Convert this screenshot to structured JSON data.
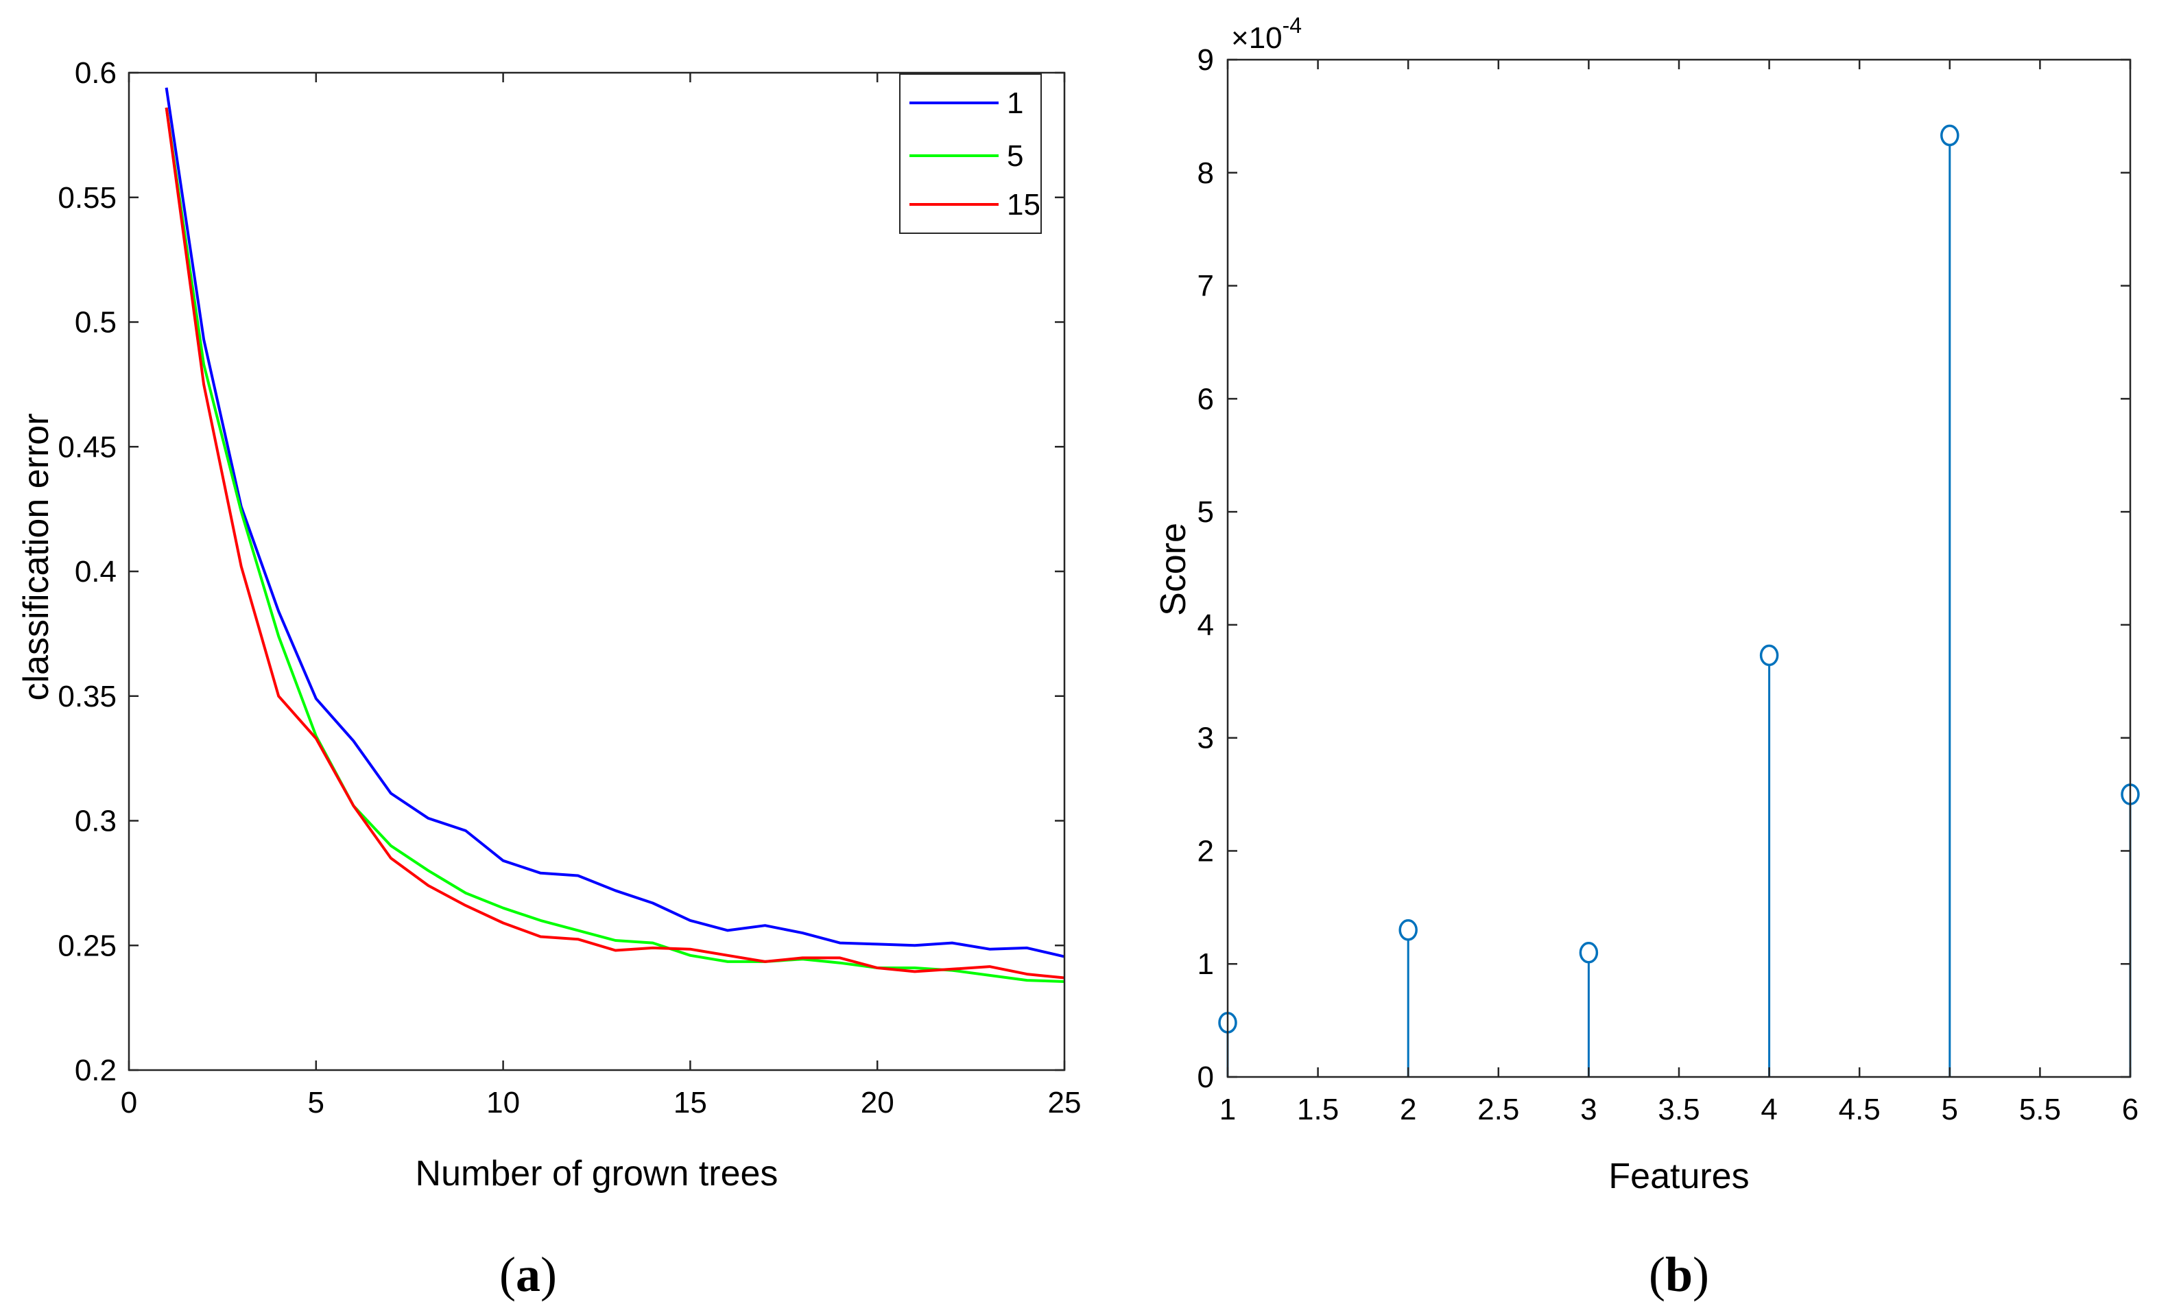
{
  "chart_data": [
    {
      "type": "line",
      "panel_label": "a",
      "caption": {
        "open": "(",
        "letter": "a",
        "close": ")"
      },
      "title": "",
      "xlabel": "Number of grown trees",
      "ylabel": "classification error",
      "xlim": [
        0,
        25
      ],
      "ylim": [
        0.2,
        0.6
      ],
      "xticks": [
        0,
        5,
        10,
        15,
        20,
        25
      ],
      "xtick_labels": [
        "0",
        "5",
        "10",
        "15",
        "20",
        "25"
      ],
      "yticks": [
        0.2,
        0.25,
        0.3,
        0.35,
        0.4,
        0.45,
        0.5,
        0.55,
        0.6
      ],
      "ytick_labels": [
        "0.2",
        "0.25",
        "0.3",
        "0.35",
        "0.4",
        "0.45",
        "0.5",
        "0.55",
        "0.6"
      ],
      "grid": false,
      "legend_position": "top-right",
      "x": [
        1,
        2,
        3,
        4,
        5,
        6,
        7,
        8,
        9,
        10,
        11,
        12,
        13,
        14,
        15,
        16,
        17,
        18,
        19,
        20,
        21,
        22,
        23,
        24,
        25
      ],
      "series": [
        {
          "name": "1",
          "color": "#0000ff",
          "values": [
            0.594,
            0.493,
            0.426,
            0.384,
            0.349,
            0.332,
            0.311,
            0.301,
            0.296,
            0.284,
            0.279,
            0.278,
            0.272,
            0.267,
            0.26,
            0.256,
            0.258,
            0.255,
            0.251,
            0.2505,
            0.25,
            0.251,
            0.2485,
            0.249,
            0.2455
          ]
        },
        {
          "name": "5",
          "color": "#00ff00",
          "values": [
            0.586,
            0.483,
            0.424,
            0.374,
            0.334,
            0.306,
            0.29,
            0.28,
            0.271,
            0.265,
            0.26,
            0.256,
            0.252,
            0.251,
            0.246,
            0.2435,
            0.2435,
            0.2445,
            0.243,
            0.241,
            0.241,
            0.24,
            0.238,
            0.236,
            0.2355
          ]
        },
        {
          "name": "15",
          "color": "#ff0000",
          "values": [
            0.586,
            0.475,
            0.402,
            0.35,
            0.333,
            0.306,
            0.285,
            0.274,
            0.266,
            0.259,
            0.2535,
            0.2525,
            0.248,
            0.249,
            0.2485,
            0.246,
            0.2435,
            0.245,
            0.245,
            0.241,
            0.2395,
            0.2405,
            0.2415,
            0.2385,
            0.237
          ]
        }
      ]
    },
    {
      "type": "stem",
      "panel_label": "b",
      "caption": {
        "open": "(",
        "letter": "b",
        "close": ")"
      },
      "title": "",
      "xlabel": "Features",
      "ylabel": "Score",
      "exponent_label": "×10",
      "exponent_power": "-4",
      "xlim": [
        1,
        6
      ],
      "ylim": [
        0,
        9
      ],
      "xticks": [
        1,
        1.5,
        2,
        2.5,
        3,
        3.5,
        4,
        4.5,
        5,
        5.5,
        6
      ],
      "xtick_labels": [
        "1",
        "1.5",
        "2",
        "2.5",
        "3",
        "3.5",
        "4",
        "4.5",
        "5",
        "5.5",
        "6"
      ],
      "yticks": [
        0,
        1,
        2,
        3,
        4,
        5,
        6,
        7,
        8,
        9
      ],
      "ytick_labels": [
        "0",
        "1",
        "2",
        "3",
        "4",
        "5",
        "6",
        "7",
        "8",
        "9"
      ],
      "grid": false,
      "color": "#0072bd",
      "x": [
        1,
        2,
        3,
        4,
        5,
        6
      ],
      "values": [
        0.48,
        1.3,
        1.1,
        3.73,
        8.33,
        2.5
      ]
    }
  ]
}
